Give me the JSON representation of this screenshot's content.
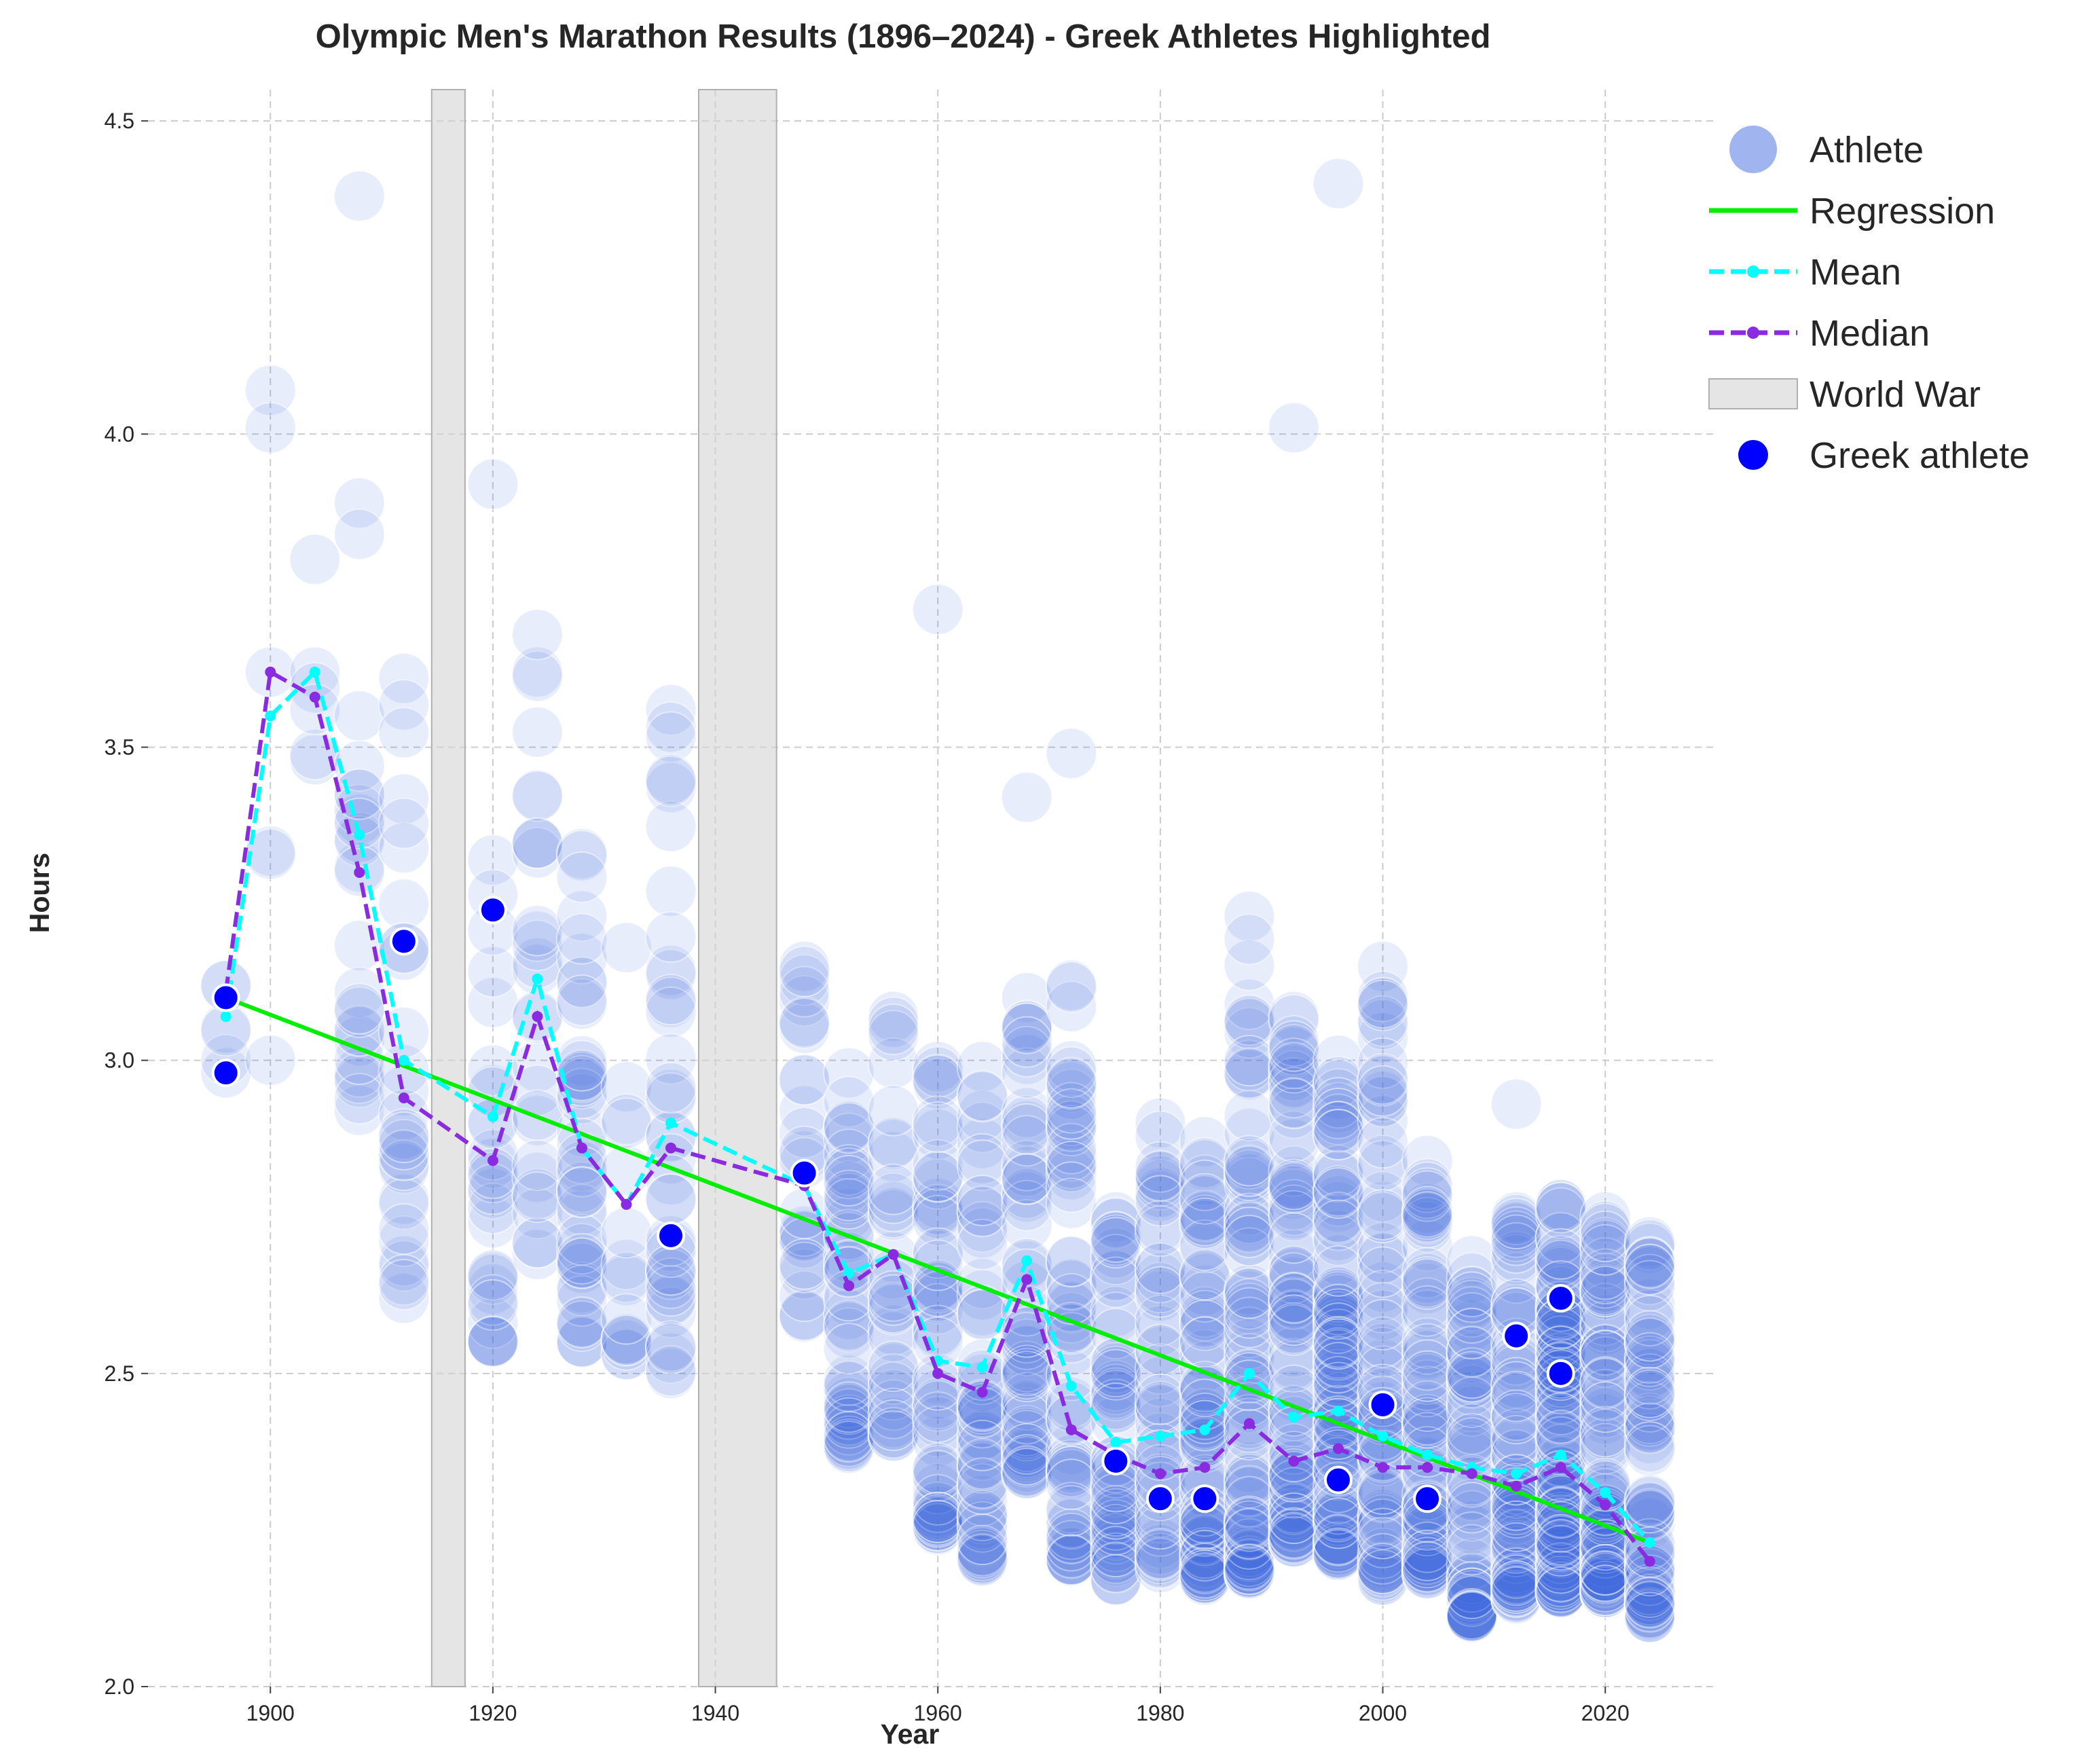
{
  "chart_data": {
    "type": "scatter",
    "title": "Olympic Men's Marathon Results (1896–2024) - Greek Athletes Highlighted",
    "xlabel": "Year",
    "ylabel": "Hours",
    "xlim": [
      1889,
      2030
    ],
    "ylim": [
      2.0,
      4.55
    ],
    "x_ticks": [
      1900,
      1920,
      1940,
      1960,
      1980,
      2000,
      2020
    ],
    "y_ticks": [
      2.0,
      2.5,
      3.0,
      3.5,
      4.0,
      4.5
    ],
    "x_tick_labels": [
      "1900",
      "1920",
      "1940",
      "1960",
      "1980",
      "2000",
      "2020"
    ],
    "y_tick_labels": [
      "2.0",
      "2.5",
      "3.0",
      "3.5",
      "4.0",
      "4.5"
    ],
    "grid": true,
    "legend_position": "outside-right-top",
    "colors": {
      "athlete": "#4169E1",
      "regression": "#00EE00",
      "mean": "#00FFFF",
      "median": "#8A2BE2",
      "world_war": "#D3D3D3",
      "greek": "#0000FF"
    },
    "legend": [
      {
        "label": "Athlete",
        "kind": "athlete-marker"
      },
      {
        "label": "Regression",
        "kind": "regression-line"
      },
      {
        "label": "Mean",
        "kind": "mean-line"
      },
      {
        "label": "Median",
        "kind": "median-line"
      },
      {
        "label": "World War",
        "kind": "war-patch"
      },
      {
        "label": "Greek athlete",
        "kind": "greek-marker"
      }
    ],
    "world_war_spans": [
      [
        1914.5,
        1917.5
      ],
      [
        1938.5,
        1945.5
      ]
    ],
    "regression": {
      "x": [
        1896,
        2024
      ],
      "y": [
        3.1,
        2.23
      ]
    },
    "mean": {
      "x": [
        1896,
        1900,
        1904,
        1908,
        1912,
        1920,
        1924,
        1928,
        1932,
        1936,
        1948,
        1952,
        1956,
        1960,
        1964,
        1968,
        1972,
        1976,
        1980,
        1984,
        1988,
        1992,
        1996,
        2000,
        2004,
        2008,
        2012,
        2016,
        2020,
        2024
      ],
      "y": [
        3.07,
        3.55,
        3.62,
        3.36,
        3.0,
        2.91,
        3.13,
        2.86,
        2.77,
        2.9,
        2.8,
        2.66,
        2.69,
        2.52,
        2.51,
        2.68,
        2.48,
        2.39,
        2.4,
        2.41,
        2.5,
        2.43,
        2.44,
        2.4,
        2.37,
        2.35,
        2.34,
        2.37,
        2.31,
        2.23
      ]
    },
    "median": {
      "x": [
        1896,
        1900,
        1904,
        1908,
        1912,
        1920,
        1924,
        1928,
        1932,
        1936,
        1948,
        1952,
        1956,
        1960,
        1964,
        1968,
        1972,
        1976,
        1980,
        1984,
        1988,
        1992,
        1996,
        2000,
        2004,
        2008,
        2012,
        2016,
        2020,
        2024
      ],
      "y": [
        3.11,
        3.62,
        3.58,
        3.3,
        2.94,
        2.84,
        3.07,
        2.86,
        2.77,
        2.86,
        2.8,
        2.64,
        2.69,
        2.5,
        2.47,
        2.65,
        2.41,
        2.37,
        2.34,
        2.35,
        2.42,
        2.36,
        2.38,
        2.35,
        2.35,
        2.34,
        2.32,
        2.35,
        2.29,
        2.2
      ]
    },
    "greek_athletes": [
      {
        "x": 1896,
        "y": 3.1
      },
      {
        "x": 1896,
        "y": 2.98
      },
      {
        "x": 1912,
        "y": 3.19
      },
      {
        "x": 1920,
        "y": 3.24
      },
      {
        "x": 1936,
        "y": 2.72
      },
      {
        "x": 1948,
        "y": 2.82
      },
      {
        "x": 1976,
        "y": 2.36
      },
      {
        "x": 1980,
        "y": 2.3
      },
      {
        "x": 1984,
        "y": 2.3
      },
      {
        "x": 1996,
        "y": 2.33
      },
      {
        "x": 2000,
        "y": 2.45
      },
      {
        "x": 2004,
        "y": 2.3
      },
      {
        "x": 2012,
        "y": 2.56
      },
      {
        "x": 2016,
        "y": 2.62
      },
      {
        "x": 2016,
        "y": 2.5
      }
    ],
    "athlete_outliers": [
      {
        "x": 1900,
        "y": 4.07
      },
      {
        "x": 1900,
        "y": 4.01
      },
      {
        "x": 1904,
        "y": 3.8
      },
      {
        "x": 1908,
        "y": 4.38
      },
      {
        "x": 1908,
        "y": 3.89
      },
      {
        "x": 1908,
        "y": 3.84
      },
      {
        "x": 1920,
        "y": 3.92
      },
      {
        "x": 1924,
        "y": 3.68
      },
      {
        "x": 1960,
        "y": 3.72
      },
      {
        "x": 1968,
        "y": 3.42
      },
      {
        "x": 1972,
        "y": 3.49
      },
      {
        "x": 1992,
        "y": 4.01
      },
      {
        "x": 1996,
        "y": 4.4
      },
      {
        "x": 2012,
        "y": 2.93
      }
    ],
    "athlete_ranges": [
      {
        "x": 1896,
        "min": 2.98,
        "max": 3.12,
        "n": 6
      },
      {
        "x": 1900,
        "min": 3.0,
        "max": 3.62,
        "n": 4
      },
      {
        "x": 1904,
        "min": 3.48,
        "max": 3.62,
        "n": 5
      },
      {
        "x": 1908,
        "min": 2.92,
        "max": 3.55,
        "n": 24
      },
      {
        "x": 1912,
        "min": 2.62,
        "max": 3.61,
        "n": 30
      },
      {
        "x": 1920,
        "min": 2.55,
        "max": 3.32,
        "n": 30
      },
      {
        "x": 1924,
        "min": 2.69,
        "max": 3.62,
        "n": 28
      },
      {
        "x": 1928,
        "min": 2.55,
        "max": 3.33,
        "n": 45
      },
      {
        "x": 1932,
        "min": 2.53,
        "max": 3.18,
        "n": 16
      },
      {
        "x": 1936,
        "min": 2.5,
        "max": 3.56,
        "n": 40
      },
      {
        "x": 1948,
        "min": 2.59,
        "max": 3.15,
        "n": 28
      },
      {
        "x": 1952,
        "min": 2.38,
        "max": 2.98,
        "n": 52
      },
      {
        "x": 1956,
        "min": 2.4,
        "max": 3.07,
        "n": 36
      },
      {
        "x": 1960,
        "min": 2.25,
        "max": 2.99,
        "n": 60
      },
      {
        "x": 1964,
        "min": 2.2,
        "max": 2.99,
        "n": 60
      },
      {
        "x": 1968,
        "min": 2.34,
        "max": 3.1,
        "n": 62
      },
      {
        "x": 1972,
        "min": 2.2,
        "max": 3.12,
        "n": 65
      },
      {
        "x": 1976,
        "min": 2.17,
        "max": 2.75,
        "n": 60
      },
      {
        "x": 1980,
        "min": 2.19,
        "max": 2.9,
        "n": 50
      },
      {
        "x": 1984,
        "min": 2.17,
        "max": 2.87,
        "n": 85
      },
      {
        "x": 1988,
        "min": 2.18,
        "max": 3.23,
        "n": 95
      },
      {
        "x": 1992,
        "min": 2.23,
        "max": 3.07,
        "n": 90
      },
      {
        "x": 1996,
        "min": 2.21,
        "max": 3.0,
        "n": 110
      },
      {
        "x": 2000,
        "min": 2.17,
        "max": 3.15,
        "n": 80
      },
      {
        "x": 2004,
        "min": 2.18,
        "max": 2.84,
        "n": 80
      },
      {
        "x": 2008,
        "min": 2.11,
        "max": 2.68,
        "n": 75
      },
      {
        "x": 2012,
        "min": 2.14,
        "max": 2.75,
        "n": 85
      },
      {
        "x": 2016,
        "min": 2.15,
        "max": 2.77,
        "n": 140
      },
      {
        "x": 2020,
        "min": 2.15,
        "max": 2.75,
        "n": 100
      },
      {
        "x": 2024,
        "min": 2.11,
        "max": 2.71,
        "n": 80
      }
    ]
  }
}
